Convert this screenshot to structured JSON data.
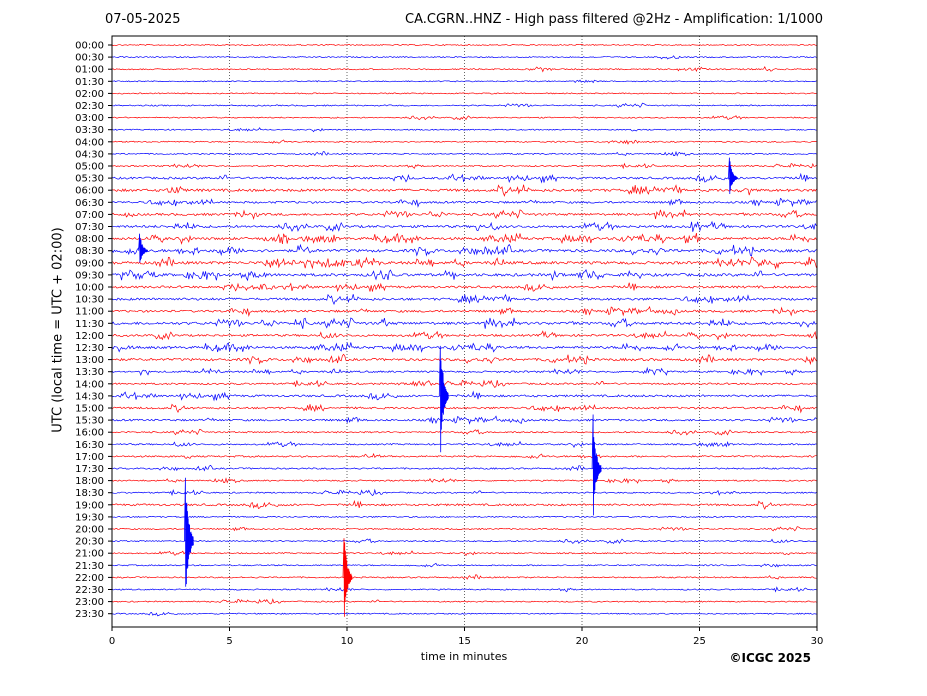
{
  "header": {
    "date": "07-05-2025",
    "title": "CA.CGRN..HNZ - High pass filtered @2Hz - Amplification: 1/1000"
  },
  "footer": {
    "copyright": "©ICGC 2025"
  },
  "chart_data": {
    "type": "line",
    "title": "CA.CGRN..HNZ - High pass filtered @2Hz - Amplification: 1/1000",
    "xlabel": "time in minutes",
    "ylabel": "UTC (local time = UTC + 02:00)",
    "xlim": [
      0,
      30
    ],
    "x_ticks": [
      "0",
      "5",
      "10",
      "15",
      "20",
      "25",
      "30"
    ],
    "y_categories": [
      "00:00",
      "00:30",
      "01:00",
      "01:30",
      "02:00",
      "02:30",
      "03:00",
      "03:30",
      "04:00",
      "04:30",
      "05:00",
      "05:30",
      "06:00",
      "06:30",
      "07:00",
      "07:30",
      "08:00",
      "08:30",
      "09:00",
      "09:30",
      "10:00",
      "10:30",
      "11:00",
      "11:30",
      "12:00",
      "12:30",
      "13:00",
      "13:30",
      "14:00",
      "14:30",
      "15:00",
      "15:30",
      "16:00",
      "16:30",
      "17:00",
      "17:30",
      "18:00",
      "18:30",
      "19:00",
      "19:30",
      "20:00",
      "20:30",
      "21:00",
      "21:30",
      "22:00",
      "22:30",
      "23:00",
      "23:30"
    ],
    "trace_colors": [
      "#ff0000",
      "#0000ff"
    ],
    "grid": "vertical dotted at 5-minute intervals",
    "activity": [
      0.05,
      0.05,
      0.12,
      0.05,
      0.06,
      0.1,
      0.08,
      0.05,
      0.1,
      0.1,
      0.12,
      0.45,
      0.65,
      0.4,
      0.5,
      0.55,
      0.6,
      0.7,
      0.7,
      0.7,
      0.5,
      0.55,
      0.45,
      0.65,
      0.45,
      0.55,
      0.55,
      0.3,
      0.3,
      0.45,
      0.4,
      0.35,
      0.2,
      0.2,
      0.25,
      0.2,
      0.15,
      0.15,
      0.4,
      0.12,
      0.1,
      0.12,
      0.1,
      0.12,
      0.15,
      0.1,
      0.08,
      0.08
    ],
    "events": [
      {
        "row": "05:30",
        "minute": 26.4,
        "amplitude": 1.8
      },
      {
        "row": "08:30",
        "minute": 1.3,
        "amplitude": 1.6
      },
      {
        "row": "14:30",
        "minute": 14.1,
        "amplitude": 5.5
      },
      {
        "row": "17:30",
        "minute": 20.6,
        "amplitude": 4.5
      },
      {
        "row": "20:30",
        "minute": 3.25,
        "amplitude": 6.5
      },
      {
        "row": "22:00",
        "minute": 10.0,
        "amplitude": 4.0
      }
    ]
  }
}
